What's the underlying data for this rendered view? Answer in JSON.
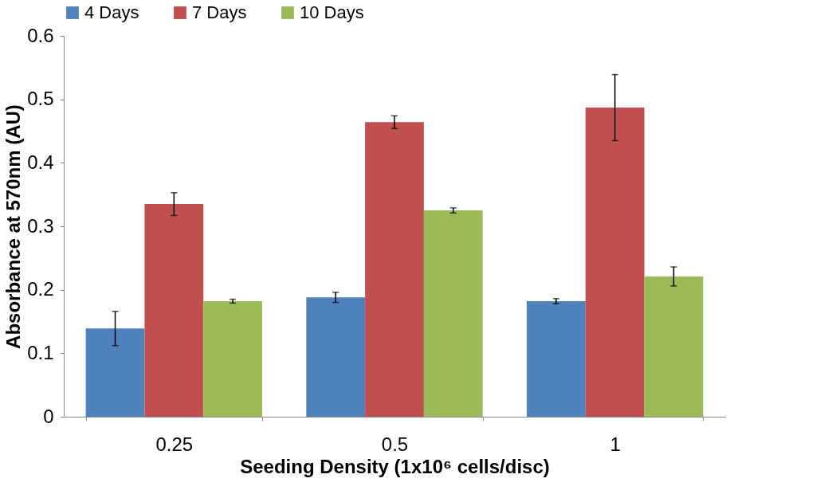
{
  "chart_data": {
    "type": "bar",
    "xlabel": "Seeding Density (1x10⁶ cells/disc)",
    "ylabel": "Absorbance at 570nm (AU)",
    "categories": [
      "0.25",
      "0.5",
      "1"
    ],
    "series": [
      {
        "name": "4 Days",
        "color": "#4f81bd",
        "values": [
          0.139,
          0.188,
          0.182
        ],
        "errors": [
          0.027,
          0.008,
          0.004
        ]
      },
      {
        "name": "7 Days",
        "color": "#c0504d",
        "values": [
          0.335,
          0.464,
          0.487
        ],
        "errors": [
          0.018,
          0.01,
          0.052
        ]
      },
      {
        "name": "10 Days",
        "color": "#9bbb59",
        "values": [
          0.182,
          0.325,
          0.221
        ],
        "errors": [
          0.003,
          0.004,
          0.015
        ]
      }
    ],
    "ylim": [
      0,
      0.6
    ],
    "yticks": [
      0,
      0.1,
      0.2,
      0.3,
      0.4,
      0.5,
      0.6
    ],
    "grid": false,
    "legend": "top"
  }
}
